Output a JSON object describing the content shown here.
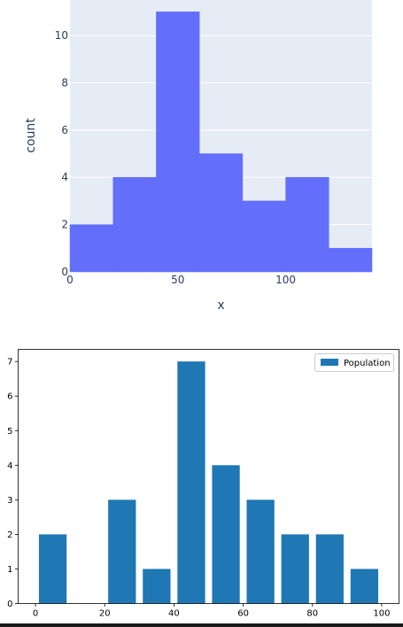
{
  "chart_data": [
    {
      "type": "bar",
      "style": "histogram",
      "bins": [
        {
          "start": 0,
          "end": 20,
          "count": 2
        },
        {
          "start": 20,
          "end": 40,
          "count": 4
        },
        {
          "start": 40,
          "end": 60,
          "count": 11
        },
        {
          "start": 60,
          "end": 80,
          "count": 5
        },
        {
          "start": 80,
          "end": 100,
          "count": 3
        },
        {
          "start": 100,
          "end": 120,
          "count": 4
        },
        {
          "start": 120,
          "end": 140,
          "count": 1
        }
      ],
      "xlabel": "x",
      "ylabel": "count",
      "xlim": [
        0,
        140
      ],
      "ylim": [
        0,
        11.5
      ],
      "xticks": [
        "0",
        "50",
        "100"
      ],
      "yticks": [
        "0",
        "2",
        "4",
        "6",
        "8",
        "10"
      ],
      "bar_color": "#636efa",
      "plot_bg": "#e5ecf6",
      "grid": true
    },
    {
      "type": "bar",
      "categories": [
        5,
        25,
        35,
        45,
        55,
        65,
        75,
        85,
        95
      ],
      "series": [
        {
          "name": "Population",
          "values": [
            2,
            3,
            1,
            7,
            4,
            3,
            2,
            2,
            1
          ]
        }
      ],
      "bar_width_units": 8,
      "xlim": [
        -5,
        105
      ],
      "ylim": [
        0,
        7.35
      ],
      "xticks": [
        "0",
        "20",
        "40",
        "60",
        "80",
        "100"
      ],
      "yticks": [
        "0",
        "1",
        "2",
        "3",
        "4",
        "5",
        "6",
        "7"
      ],
      "bar_color": "#1f77b4",
      "legend_position": "top-right",
      "grid": false
    }
  ]
}
